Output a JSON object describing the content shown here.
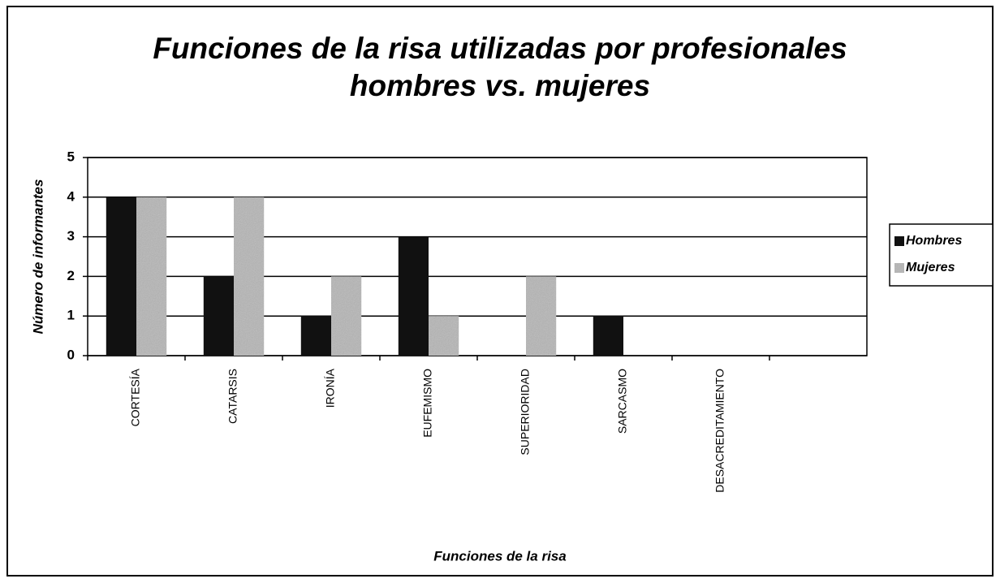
{
  "chart_data": {
    "type": "bar",
    "title": [
      "Funciones de la risa utilizadas por profesionales",
      "hombres vs. mujeres"
    ],
    "x_label": "Funciones de la risa",
    "y_label": "Número de informantes",
    "categories": [
      "CORTESÍA",
      "CATARSIS",
      "IRONÍA",
      "EUFEMISMO",
      "SUPERIORIDAD",
      "SARCASMO",
      "DESACREDITAMIENTO",
      null
    ],
    "series": [
      {
        "name": "Hombres",
        "color": "#111111",
        "values": [
          4,
          2,
          1,
          3,
          0,
          1,
          0,
          null
        ]
      },
      {
        "name": "Mujeres",
        "color": "#b5b5b5",
        "values": [
          4,
          4,
          2,
          1,
          2,
          0,
          0,
          null
        ]
      }
    ],
    "ylim": [
      0,
      5
    ],
    "yticks": [
      0,
      1,
      2,
      3,
      4,
      5
    ],
    "grid": true,
    "legend": "right"
  }
}
